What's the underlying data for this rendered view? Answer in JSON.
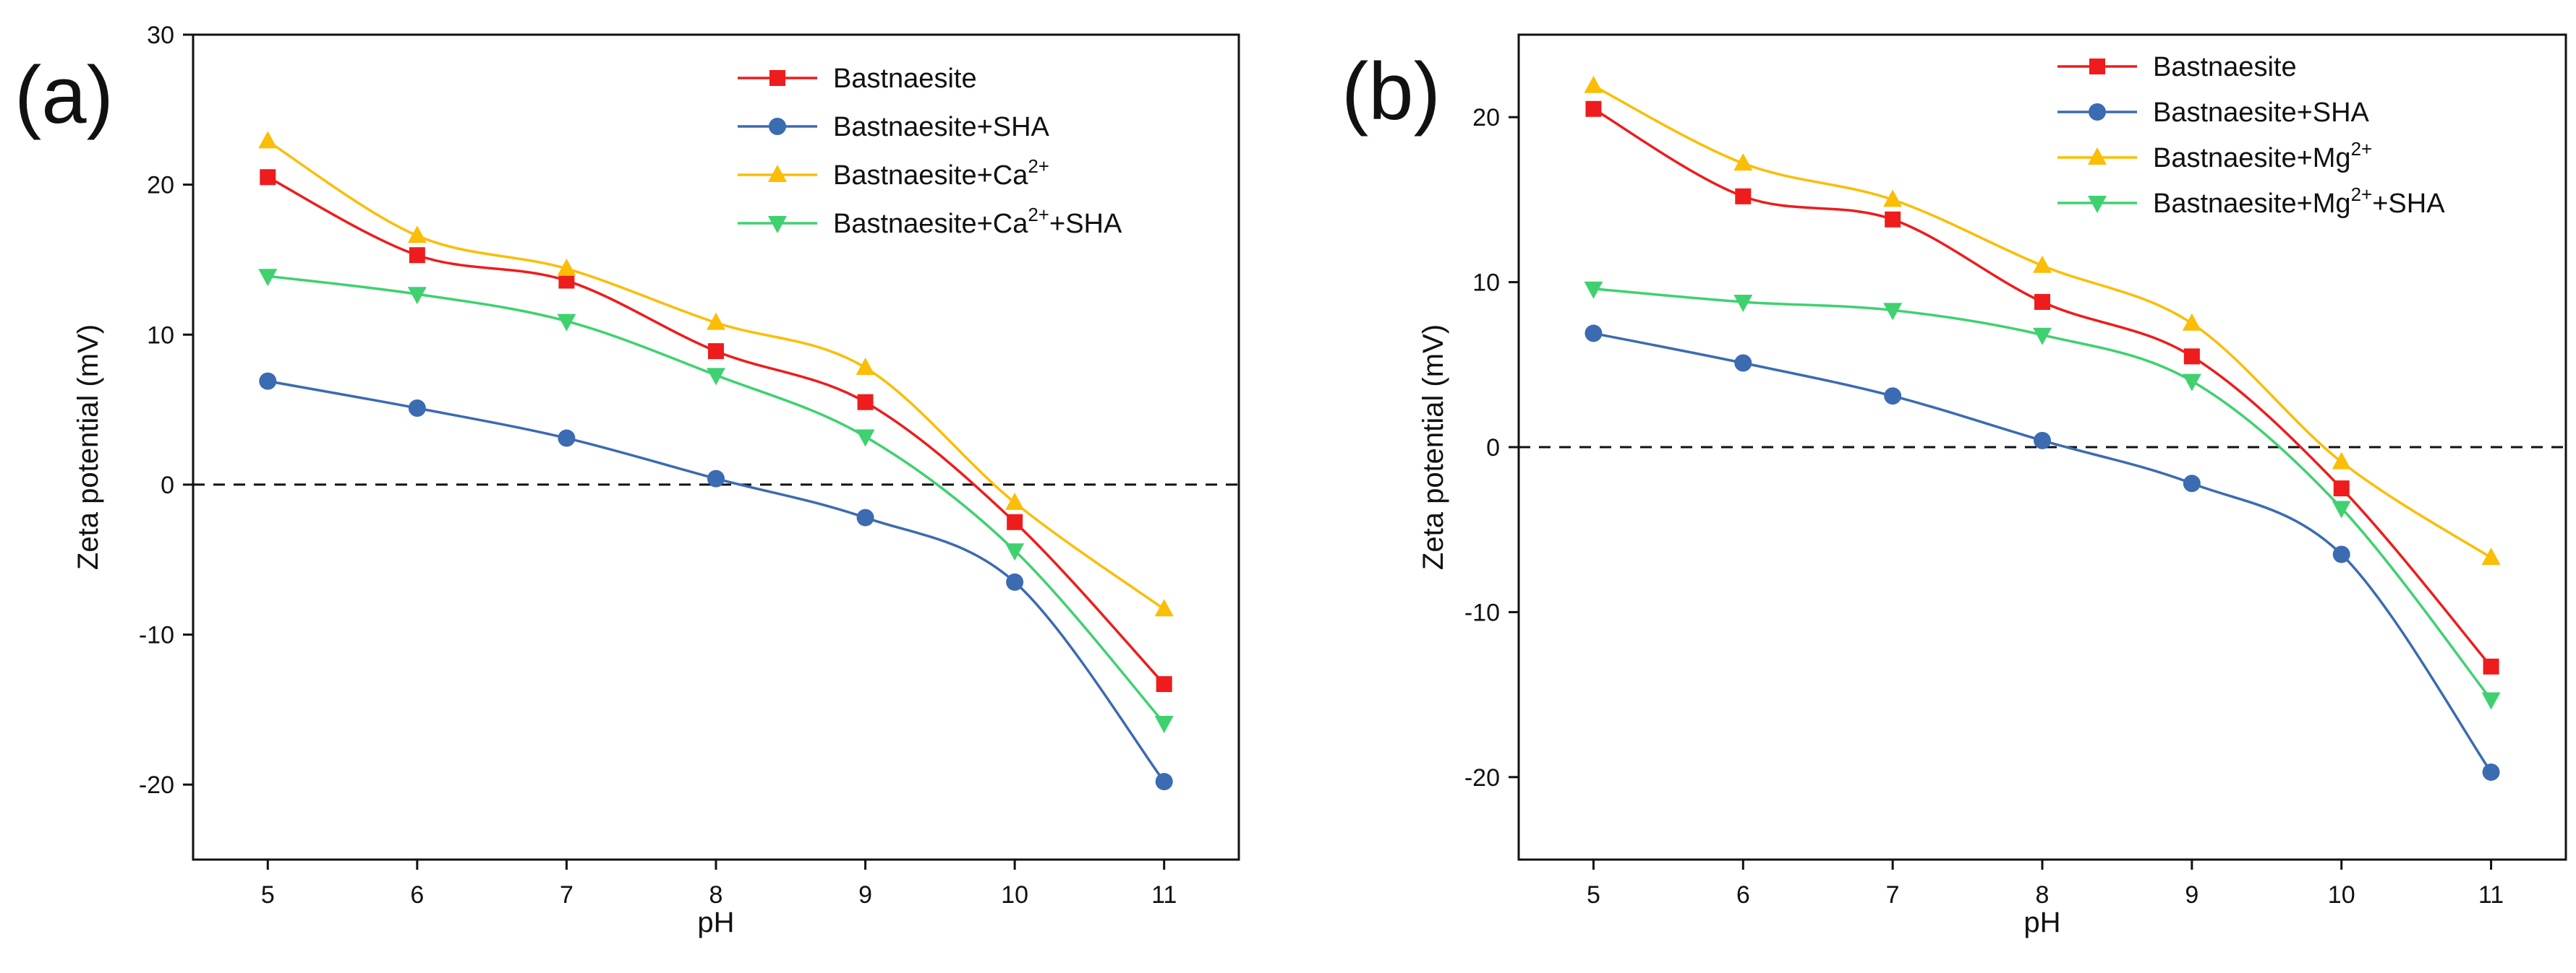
{
  "chart_data": [
    {
      "type": "line",
      "panel_label": "(a)",
      "xlabel": "pH",
      "ylabel": "Zeta potential (mV)",
      "x": [
        5,
        6,
        7,
        8,
        9,
        10,
        11
      ],
      "xlim": [
        4.5,
        11.5
      ],
      "ylim": [
        -25,
        30
      ],
      "xticks": [
        5,
        6,
        7,
        8,
        9,
        10,
        11
      ],
      "yticks": [
        -20,
        -10,
        0,
        10,
        20,
        30
      ],
      "reference_line": 0,
      "legend_position": "top-right",
      "series": [
        {
          "name": "Bastnaesite",
          "marker": "square",
          "color": "#ee1c1c",
          "values": [
            20.5,
            15.3,
            13.6,
            8.9,
            5.5,
            -2.5,
            -13.3
          ]
        },
        {
          "name": "Bastnaesite+SHA",
          "marker": "circle",
          "color": "#3b6bb1",
          "values": [
            6.9,
            5.1,
            3.1,
            0.4,
            -2.2,
            -6.5,
            -19.8
          ]
        },
        {
          "name": "Bastnaesite+Ca2+",
          "label_base": "Bastnaesite+Ca",
          "label_sup": "2+",
          "label_tail": "",
          "marker": "triangle-up",
          "color": "#fbbd05",
          "values": [
            22.9,
            16.6,
            14.4,
            10.8,
            7.8,
            -1.2,
            -8.3
          ]
        },
        {
          "name": "Bastnaesite+Ca2++SHA",
          "label_base": "Bastnaesite+Ca",
          "label_sup": "2+",
          "label_tail": "+SHA",
          "marker": "triangle-down",
          "color": "#3fd170",
          "values": [
            13.9,
            12.7,
            10.9,
            7.3,
            3.2,
            -4.4,
            -15.9
          ]
        }
      ]
    },
    {
      "type": "line",
      "panel_label": "(b)",
      "xlabel": "pH",
      "ylabel": "Zeta potential (mV)",
      "x": [
        5,
        6,
        7,
        8,
        9,
        10,
        11
      ],
      "xlim": [
        4.5,
        11.5
      ],
      "ylim": [
        -25,
        25
      ],
      "xticks": [
        5,
        6,
        7,
        8,
        9,
        10,
        11
      ],
      "yticks": [
        -20,
        -10,
        0,
        10,
        20
      ],
      "reference_line": 0,
      "legend_position": "top-right",
      "series": [
        {
          "name": "Bastnaesite",
          "marker": "square",
          "color": "#ee1c1c",
          "values": [
            20.5,
            15.2,
            13.8,
            8.8,
            5.5,
            -2.5,
            -13.3
          ]
        },
        {
          "name": "Bastnaesite+SHA",
          "marker": "circle",
          "color": "#3b6bb1",
          "values": [
            6.9,
            5.1,
            3.1,
            0.4,
            -2.2,
            -6.5,
            -19.7
          ]
        },
        {
          "name": "Bastnaesite+Mg2+",
          "label_base": "Bastnaesite+Mg",
          "label_sup": "2+",
          "label_tail": "",
          "marker": "triangle-up",
          "color": "#fbbd05",
          "values": [
            21.9,
            17.2,
            15.0,
            11.0,
            7.5,
            -0.9,
            -6.7
          ]
        },
        {
          "name": "Bastnaesite+Mg2++SHA",
          "label_base": "Bastnaesite+Mg",
          "label_sup": "2+",
          "label_tail": "+SHA",
          "marker": "triangle-down",
          "color": "#3fd170",
          "values": [
            9.6,
            8.8,
            8.3,
            6.8,
            4.0,
            -3.7,
            -15.3
          ]
        }
      ]
    }
  ]
}
